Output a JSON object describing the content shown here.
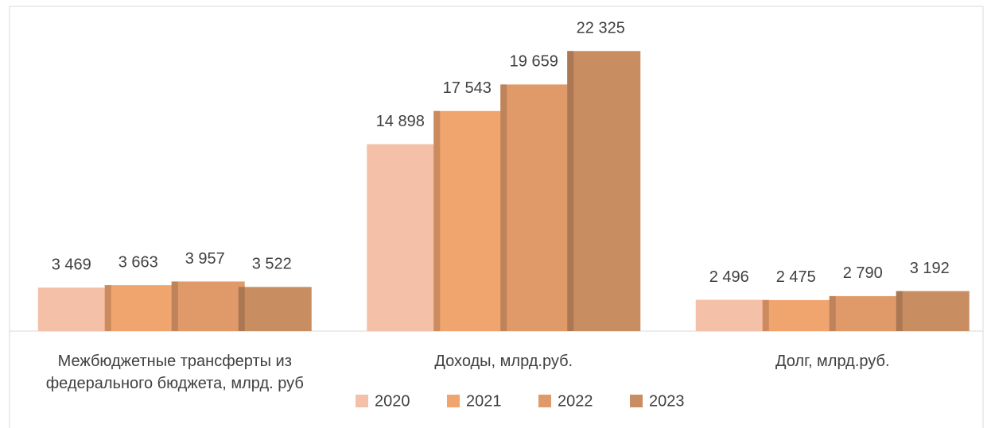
{
  "chart_data": {
    "type": "bar",
    "categories": [
      "Межбюджетные трансферты из федерального бюджета, млрд. руб",
      "Доходы, млрд.руб.",
      "Долг, млрд.руб."
    ],
    "series": [
      {
        "name": "2020",
        "color": "#f4c0a8",
        "values": [
          3469,
          14898,
          2496
        ],
        "value_labels": [
          "3 469",
          "14 898",
          "2 496"
        ]
      },
      {
        "name": "2021",
        "color": "#f0a46e",
        "values": [
          3663,
          17543,
          2475
        ],
        "value_labels": [
          "3 663",
          "17 543",
          "2 475"
        ]
      },
      {
        "name": "2022",
        "color": "#e09a6a",
        "values": [
          3957,
          19659,
          2790
        ],
        "value_labels": [
          "3 957",
          "19 659",
          "2 790"
        ]
      },
      {
        "name": "2023",
        "color": "#c98d62",
        "values": [
          3522,
          22325,
          3192
        ],
        "value_labels": [
          "3 522",
          "22 325",
          "3 192"
        ]
      }
    ],
    "ylim": [
      0,
      25000
    ],
    "legend": "bottom"
  }
}
